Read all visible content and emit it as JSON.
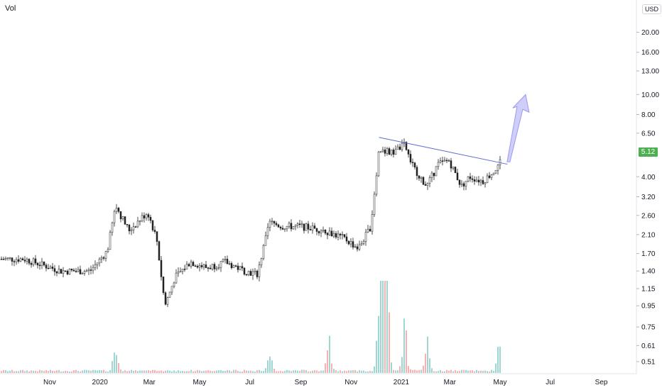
{
  "volume_label": "Vol",
  "currency": "USD",
  "last_price": "5.12",
  "colors": {
    "up": "#26a69a",
    "down": "#ef5350",
    "trendline": "#5b6ad0",
    "arrow": "#b9b9f5",
    "last_price_bg": "#4caf50"
  },
  "chart_data": {
    "type": "candlestick",
    "y_scale": "log",
    "ylim": [
      0.45,
      25
    ],
    "y_ticks": [
      "20.00",
      "16.00",
      "13.00",
      "10.00",
      "8.00",
      "6.50",
      "5.12",
      "4.00",
      "3.20",
      "2.60",
      "2.10",
      "1.70",
      "1.40",
      "1.15",
      "0.95",
      "0.75",
      "0.61",
      "0.51"
    ],
    "x_ticks": [
      "Nov",
      "2020",
      "Mar",
      "May",
      "Jul",
      "Sep",
      "Nov",
      "2021",
      "Mar",
      "May",
      "Jul",
      "Sep"
    ],
    "price_path": [
      [
        "2019-10-01",
        1.6
      ],
      [
        "2019-11-15",
        1.4
      ],
      [
        "2019-12-20",
        1.4
      ],
      [
        "2020-01-10",
        1.75
      ],
      [
        "2020-01-20",
        2.9
      ],
      [
        "2020-02-05",
        2.2
      ],
      [
        "2020-02-15",
        2.4
      ],
      [
        "2020-02-28",
        2.7
      ],
      [
        "2020-03-10",
        2.0
      ],
      [
        "2020-03-20",
        0.95
      ],
      [
        "2020-04-01",
        1.3
      ],
      [
        "2020-04-20",
        1.55
      ],
      [
        "2020-05-10",
        1.45
      ],
      [
        "2020-06-01",
        1.55
      ],
      [
        "2020-06-25",
        1.4
      ],
      [
        "2020-07-10",
        1.35
      ],
      [
        "2020-07-25",
        2.4
      ],
      [
        "2020-08-10",
        2.3
      ],
      [
        "2020-09-01",
        2.3
      ],
      [
        "2020-10-01",
        2.2
      ],
      [
        "2020-10-25",
        2.0
      ],
      [
        "2020-11-10",
        1.8
      ],
      [
        "2020-11-25",
        2.3
      ],
      [
        "2020-12-05",
        5.5
      ],
      [
        "2020-12-20",
        5.2
      ],
      [
        "2021-01-05",
        5.7
      ],
      [
        "2021-01-15",
        4.5
      ],
      [
        "2021-02-01",
        3.6
      ],
      [
        "2021-02-15",
        4.6
      ],
      [
        "2021-02-28",
        4.8
      ],
      [
        "2021-03-15",
        3.6
      ],
      [
        "2021-03-25",
        4.0
      ],
      [
        "2021-04-10",
        3.8
      ],
      [
        "2021-04-25",
        4.3
      ],
      [
        "2021-05-05",
        5.1
      ]
    ],
    "volume_spikes": [
      [
        "2020-01-20",
        0.32
      ],
      [
        "2020-07-25",
        0.22
      ],
      [
        "2020-10-05",
        0.35
      ],
      [
        "2020-12-05",
        0.75
      ],
      [
        "2020-12-10",
        1.0
      ],
      [
        "2020-12-15",
        0.85
      ],
      [
        "2021-01-05",
        0.55
      ],
      [
        "2021-02-01",
        0.4
      ],
      [
        "2021-04-30",
        0.3
      ]
    ],
    "trendline": [
      [
        "2020-12-05",
        6.2
      ],
      [
        "2021-05-10",
        4.6
      ]
    ],
    "projection_arrow_end": [
      "2021-06-01",
      10.0
    ]
  }
}
